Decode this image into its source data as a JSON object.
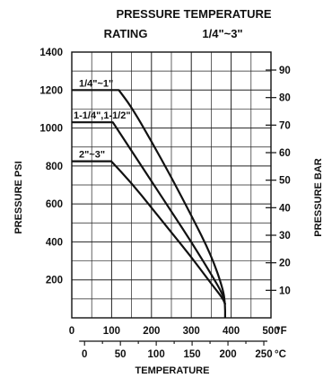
{
  "chart_data": {
    "type": "line",
    "title": "PRESSURE TEMPERATURE",
    "subtitle_left": "RATING",
    "subtitle_right": "1/4\"~3\"",
    "xlabel": "TEMPERATURE",
    "ylabel_left": "PRESSURE PSI",
    "ylabel_right": "PRESSURE BAR",
    "x_unit_f": "°F",
    "x_unit_c": "°C",
    "xlim_f": [
      0,
      500
    ],
    "ylim_psi": [
      0,
      1400
    ],
    "grid": true,
    "x_ticks_f": [
      "0",
      "100",
      "200",
      "300",
      "400",
      "500"
    ],
    "x_ticks_c": [
      "0",
      "50",
      "100",
      "150",
      "200",
      "250"
    ],
    "y_ticks_psi": [
      "200",
      "400",
      "600",
      "800",
      "1000",
      "1200",
      "1400"
    ],
    "y_ticks_bar": [
      "10",
      "20",
      "30",
      "40",
      "50",
      "60",
      "70",
      "80",
      "90"
    ],
    "series": [
      {
        "name": "1/4\"~1\"",
        "x": [
          0,
          118,
          150,
          200,
          250,
          300,
          350,
          380,
          385,
          385
        ],
        "y": [
          1200,
          1200,
          1110,
          930,
          740,
          540,
          330,
          150,
          70,
          0
        ]
      },
      {
        "name": "1-1/4\",1-1/2\"",
        "x": [
          0,
          103,
          150,
          200,
          250,
          300,
          350,
          380,
          385
        ],
        "y": [
          1030,
          1030,
          880,
          720,
          560,
          400,
          230,
          120,
          70
        ]
      },
      {
        "name": "2\"~3\"",
        "x": [
          0,
          99,
          150,
          200,
          250,
          300,
          350,
          380,
          385
        ],
        "y": [
          825,
          825,
          710,
          580,
          450,
          320,
          180,
          100,
          70
        ]
      }
    ]
  }
}
